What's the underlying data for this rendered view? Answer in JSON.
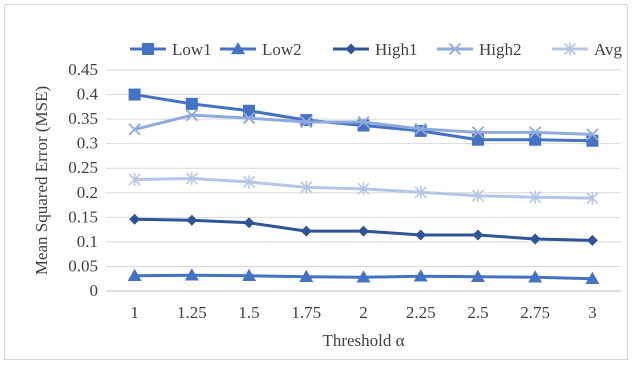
{
  "chart_data": {
    "type": "line",
    "xlabel": "Threshold α",
    "ylabel": "Mean Squared Error  (MSE)",
    "categories": [
      "1",
      "1.25",
      "1.5",
      "1.75",
      "2",
      "2.25",
      "2.5",
      "2.75",
      "3"
    ],
    "ylim": [
      0,
      0.45
    ],
    "yticks": [
      "0",
      "0.05",
      "0.1",
      "0.15",
      "0.2",
      "0.25",
      "0.3",
      "0.35",
      "0.4",
      "0.45"
    ],
    "grid": true,
    "legend_position": "top",
    "series": [
      {
        "name": "Low1",
        "marker": "square",
        "color": "#4472c4",
        "values": [
          0.4,
          0.381,
          0.367,
          0.348,
          0.337,
          0.326,
          0.308,
          0.308,
          0.306
        ]
      },
      {
        "name": "Low2",
        "marker": "triangle",
        "color": "#4472c4",
        "values": [
          0.031,
          0.032,
          0.031,
          0.029,
          0.028,
          0.03,
          0.029,
          0.028,
          0.025
        ]
      },
      {
        "name": "High1",
        "marker": "diamond",
        "color": "#2f5597",
        "values": [
          0.146,
          0.144,
          0.139,
          0.122,
          0.122,
          0.114,
          0.114,
          0.106,
          0.103
        ]
      },
      {
        "name": "High2",
        "marker": "x",
        "color": "#8faadc",
        "values": [
          0.329,
          0.358,
          0.352,
          0.344,
          0.344,
          0.33,
          0.323,
          0.323,
          0.319
        ]
      },
      {
        "name": "Avg",
        "marker": "star",
        "color": "#b4c7e7",
        "values": [
          0.227,
          0.229,
          0.222,
          0.211,
          0.208,
          0.201,
          0.194,
          0.191,
          0.189
        ]
      }
    ]
  }
}
